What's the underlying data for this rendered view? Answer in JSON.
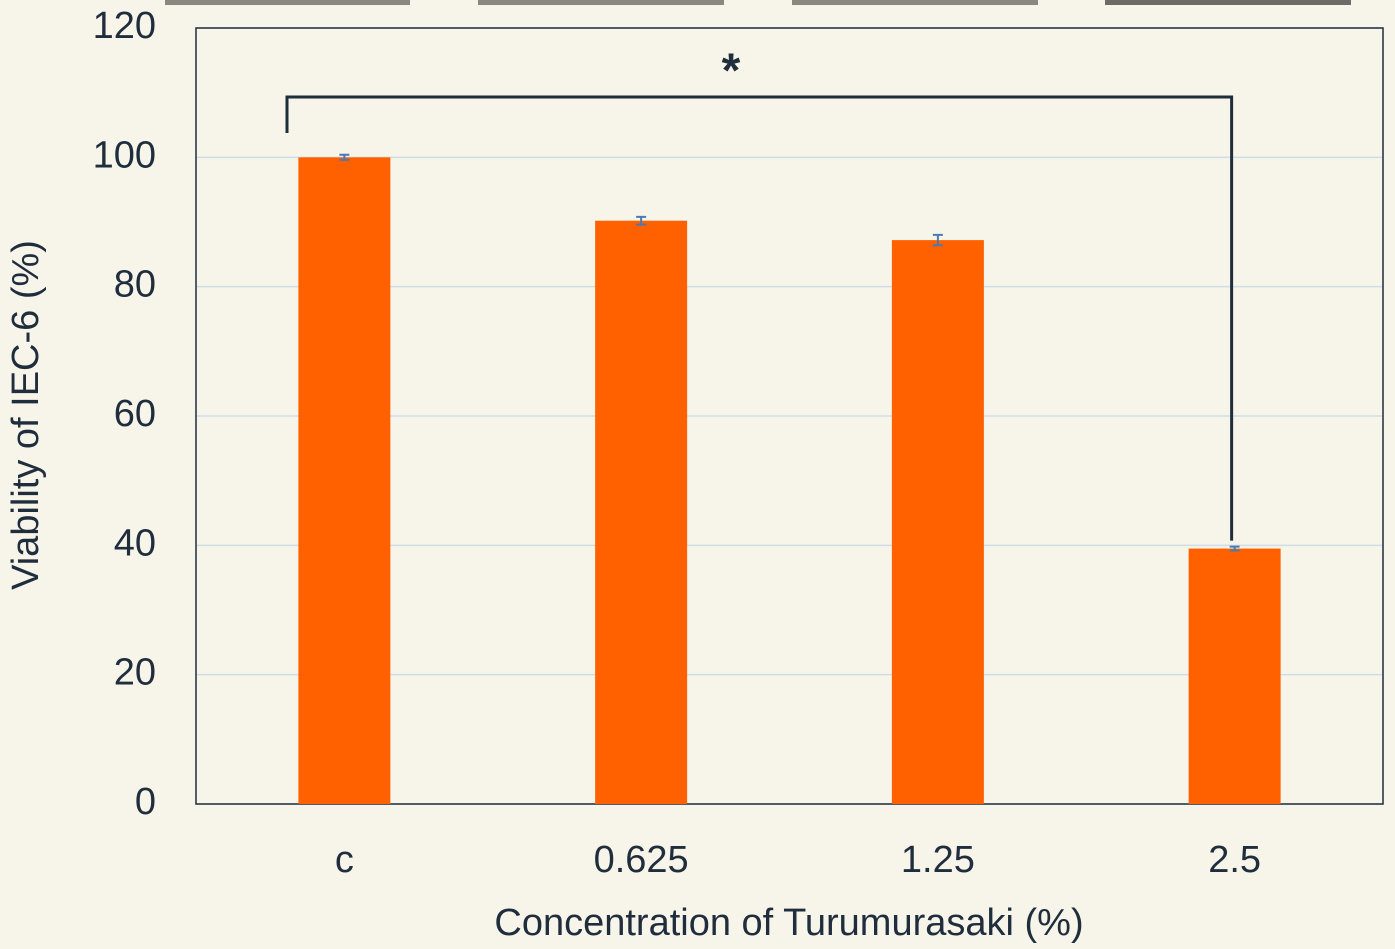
{
  "chart_data": {
    "type": "bar",
    "x_label": "Concentration of Turumurasaki (%)",
    "y_label": "Viability of IEC-6 (%)",
    "categories": [
      "c",
      "0.625",
      "1.25",
      "2.5"
    ],
    "values": [
      100,
      90.2,
      87.2,
      39.5
    ],
    "errors": [
      0.4,
      0.6,
      0.8,
      0.3
    ],
    "color": "#ff6000",
    "error_color": "#4a7ab0",
    "ylim": [
      0,
      120
    ],
    "yticks": [
      0,
      20,
      40,
      60,
      80,
      100,
      120
    ],
    "grid": true,
    "annotation": "*"
  }
}
